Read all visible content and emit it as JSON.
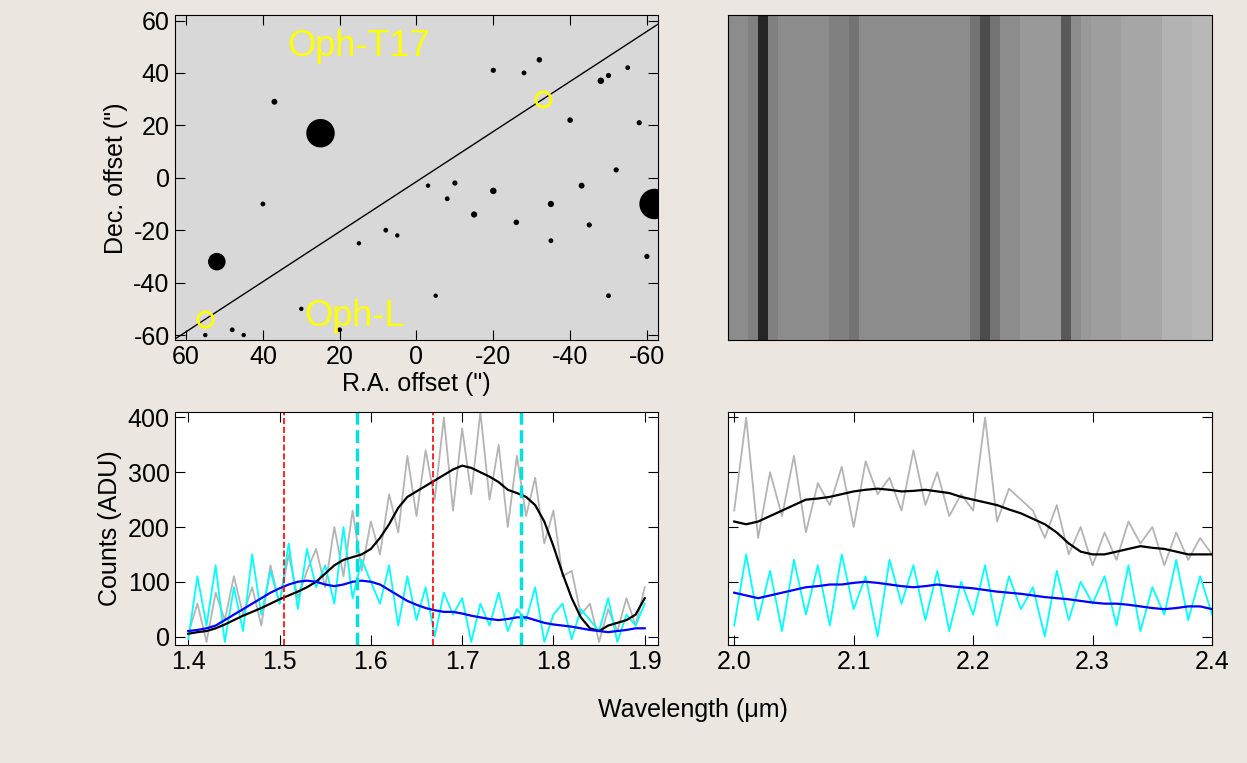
{
  "chart_data": [
    {
      "type": "image",
      "xlabel": "R.A. offset (\")",
      "ylabel": "Dec. offset (\")",
      "xlim": [
        63,
        -63
      ],
      "ylim": [
        -62,
        62
      ],
      "xticks": [
        60,
        40,
        20,
        0,
        -20,
        -40,
        -60
      ],
      "yticks": [
        -60,
        -40,
        -20,
        0,
        20,
        40,
        60
      ],
      "stars": {
        "color": "black",
        "x": [
          25,
          52,
          -62,
          37,
          -20,
          -28,
          -32,
          -48,
          -50,
          -40,
          -52,
          -43,
          -35,
          -26,
          -45,
          -8,
          -3,
          -10,
          -20,
          -15,
          8,
          5,
          -58,
          -55,
          30,
          20,
          45,
          40,
          -5,
          -50,
          55,
          48,
          -60,
          -35,
          15
        ],
        "y": [
          17,
          -32,
          -10,
          29,
          41,
          40,
          45,
          37,
          39,
          22,
          3,
          -3,
          -10,
          -17,
          -18,
          -8,
          -3,
          -2,
          -5,
          -14,
          -20,
          -22,
          21,
          42,
          -50,
          -58,
          -60,
          -10,
          -45,
          -45,
          -60,
          -58,
          -30,
          -24,
          -25
        ],
        "size": [
          420,
          160,
          480,
          18,
          14,
          12,
          16,
          22,
          14,
          16,
          14,
          18,
          20,
          16,
          14,
          12,
          10,
          14,
          22,
          20,
          12,
          10,
          14,
          12,
          10,
          12,
          10,
          12,
          10,
          12,
          10,
          12,
          14,
          12,
          10
        ]
      },
      "slit": {
        "color": "black",
        "x": [
          63,
          -63
        ],
        "y": [
          -61.6,
          58.7
        ]
      },
      "targets": {
        "color": "#ffff00",
        "marker": "circle",
        "x": [
          55,
          -33
        ],
        "y": [
          -54,
          30
        ]
      },
      "annotations": [
        {
          "text": "Oph-T17",
          "x": 15,
          "y": 50,
          "color": "#ffff00"
        },
        {
          "text": "Oph-L",
          "x": 16,
          "y": -53,
          "color": "#ffff00"
        }
      ]
    },
    {
      "type": "image",
      "tick_labels": false,
      "clim": [
        0,
        1
      ],
      "column_levels": [
        0.55,
        0.55,
        0.5,
        0.15,
        0.5,
        0.55,
        0.55,
        0.55,
        0.55,
        0.55,
        0.5,
        0.5,
        0.45,
        0.55,
        0.55,
        0.55,
        0.55,
        0.55,
        0.55,
        0.55,
        0.55,
        0.55,
        0.55,
        0.55,
        0.45,
        0.3,
        0.45,
        0.55,
        0.55,
        0.6,
        0.6,
        0.6,
        0.6,
        0.35,
        0.55,
        0.6,
        0.62,
        0.62,
        0.62,
        0.65,
        0.65,
        0.65,
        0.65,
        0.7,
        0.7,
        0.7,
        0.72,
        0.72
      ]
    },
    {
      "type": "line",
      "xlabel": "Wavelength (μm)",
      "ylabel": "Counts (ADU)",
      "xlim": [
        1.385,
        1.915
      ],
      "ylim": [
        -15,
        410
      ],
      "xticks": [
        1.4,
        1.5,
        1.6,
        1.7,
        1.8,
        1.9
      ],
      "yticks": [
        0,
        100,
        200,
        300,
        400
      ],
      "x": [
        1.4,
        1.41,
        1.42,
        1.43,
        1.44,
        1.45,
        1.46,
        1.47,
        1.48,
        1.49,
        1.5,
        1.51,
        1.52,
        1.53,
        1.54,
        1.55,
        1.56,
        1.57,
        1.58,
        1.59,
        1.6,
        1.61,
        1.62,
        1.63,
        1.64,
        1.65,
        1.66,
        1.67,
        1.68,
        1.69,
        1.7,
        1.71,
        1.72,
        1.73,
        1.74,
        1.75,
        1.76,
        1.77,
        1.78,
        1.79,
        1.8,
        1.81,
        1.82,
        1.83,
        1.84,
        1.85,
        1.86,
        1.87,
        1.88,
        1.89,
        1.9
      ],
      "series": [
        {
          "color": "#b4b4b4",
          "values": [
            5,
            60,
            -10,
            80,
            30,
            110,
            40,
            90,
            20,
            130,
            60,
            150,
            70,
            120,
            160,
            90,
            200,
            110,
            230,
            120,
            210,
            150,
            260,
            190,
            330,
            220,
            340,
            250,
            400,
            230,
            380,
            260,
            410,
            250,
            350,
            200,
            330,
            220,
            290,
            170,
            230,
            110,
            120,
            40,
            60,
            -10,
            50,
            10,
            70,
            20,
            90
          ]
        },
        {
          "color": "#00ffff",
          "values": [
            -5,
            110,
            20,
            130,
            -10,
            90,
            10,
            150,
            40,
            120,
            60,
            170,
            50,
            160,
            90,
            130,
            60,
            200,
            70,
            140,
            100,
            60,
            130,
            20,
            110,
            30,
            90,
            0,
            80,
            40,
            70,
            -10,
            60,
            20,
            80,
            10,
            50,
            30,
            90,
            -10,
            40,
            60,
            -5,
            50,
            30,
            10,
            70,
            -10,
            40,
            20,
            60
          ]
        },
        {
          "color": "#000000",
          "values": [
            5,
            8,
            10,
            15,
            22,
            30,
            38,
            45,
            52,
            60,
            68,
            75,
            82,
            90,
            100,
            115,
            130,
            140,
            145,
            150,
            160,
            180,
            205,
            235,
            255,
            265,
            275,
            285,
            295,
            305,
            312,
            308,
            300,
            292,
            282,
            268,
            262,
            255,
            240,
            210,
            165,
            115,
            70,
            35,
            15,
            10,
            20,
            25,
            30,
            40,
            70
          ]
        },
        {
          "color": "#0000ff",
          "values": [
            10,
            12,
            15,
            20,
            30,
            40,
            50,
            60,
            70,
            80,
            88,
            95,
            100,
            102,
            100,
            95,
            92,
            95,
            100,
            102,
            100,
            95,
            85,
            75,
            65,
            58,
            52,
            48,
            45,
            45,
            42,
            38,
            35,
            32,
            30,
            32,
            35,
            35,
            30,
            25,
            22,
            20,
            18,
            15,
            12,
            10,
            8,
            10,
            12,
            15,
            15
          ]
        }
      ],
      "vertical_lines": [
        {
          "x": 1.505,
          "color": "#ff0000",
          "line_style": "dashed"
        },
        {
          "x": 1.585,
          "color": "#00e0e0",
          "line_style": "dashed"
        },
        {
          "x": 1.668,
          "color": "#ff0000",
          "line_style": "dashed"
        },
        {
          "x": 1.765,
          "color": "#00e0e0",
          "line_style": "dashed"
        }
      ]
    },
    {
      "type": "line",
      "tick_labels": "x",
      "xlim": [
        1.995,
        2.4
      ],
      "ylim": [
        -15,
        410
      ],
      "xticks": [
        2.0,
        2.1,
        2.2,
        2.3,
        2.4
      ],
      "yticks": [
        0,
        100,
        200,
        300,
        400
      ],
      "x": [
        2.0,
        2.01,
        2.02,
        2.03,
        2.04,
        2.05,
        2.06,
        2.07,
        2.08,
        2.09,
        2.1,
        2.11,
        2.12,
        2.13,
        2.14,
        2.15,
        2.16,
        2.17,
        2.18,
        2.19,
        2.2,
        2.21,
        2.22,
        2.23,
        2.24,
        2.25,
        2.26,
        2.27,
        2.28,
        2.29,
        2.3,
        2.31,
        2.32,
        2.33,
        2.34,
        2.35,
        2.36,
        2.37,
        2.38,
        2.39,
        2.4
      ],
      "series": [
        {
          "color": "#b4b4b4",
          "values": [
            230,
            400,
            180,
            300,
            220,
            330,
            190,
            280,
            240,
            310,
            200,
            320,
            260,
            290,
            230,
            340,
            240,
            300,
            220,
            260,
            230,
            400,
            210,
            270,
            250,
            230,
            180,
            240,
            150,
            200,
            130,
            190,
            140,
            210,
            170,
            200,
            130,
            190,
            140,
            180,
            150
          ]
        },
        {
          "color": "#00ffff",
          "values": [
            20,
            150,
            30,
            120,
            10,
            140,
            40,
            130,
            20,
            150,
            50,
            110,
            0,
            140,
            60,
            130,
            30,
            120,
            10,
            100,
            40,
            130,
            20,
            110,
            50,
            90,
            0,
            120,
            30,
            100,
            60,
            110,
            20,
            130,
            10,
            90,
            40,
            140,
            30,
            110,
            40
          ]
        },
        {
          "color": "#000000",
          "values": [
            210,
            205,
            210,
            220,
            230,
            240,
            250,
            252,
            255,
            260,
            265,
            268,
            270,
            268,
            265,
            266,
            268,
            265,
            262,
            255,
            250,
            245,
            240,
            232,
            225,
            215,
            205,
            190,
            170,
            155,
            150,
            150,
            155,
            160,
            165,
            162,
            160,
            155,
            150,
            150,
            150
          ]
        },
        {
          "color": "#0000ff",
          "values": [
            80,
            75,
            70,
            75,
            80,
            85,
            90,
            92,
            95,
            95,
            98,
            100,
            98,
            95,
            92,
            90,
            92,
            95,
            92,
            90,
            88,
            85,
            82,
            80,
            78,
            75,
            72,
            70,
            68,
            65,
            62,
            60,
            60,
            58,
            55,
            52,
            50,
            52,
            55,
            55,
            50
          ]
        }
      ]
    }
  ]
}
